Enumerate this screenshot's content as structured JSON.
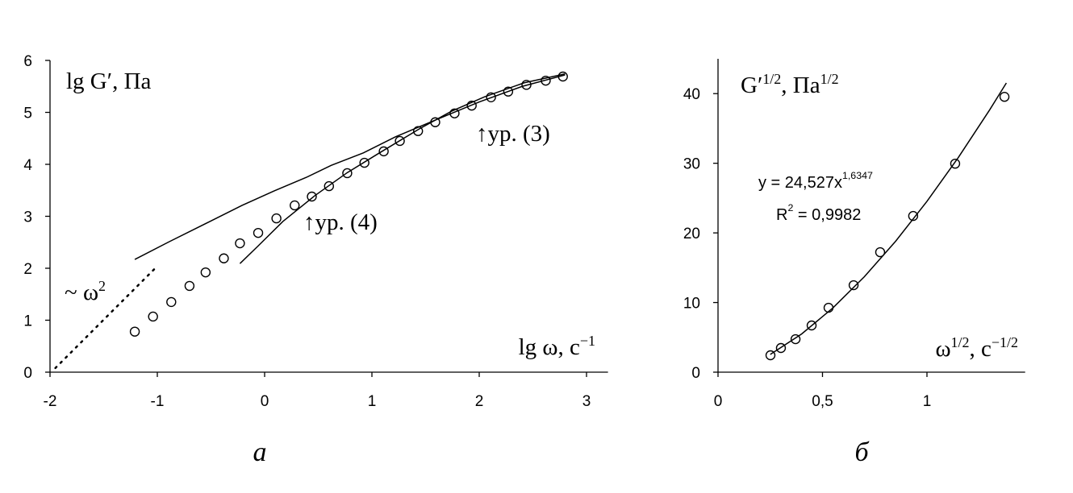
{
  "chart_data": [
    {
      "type": "scatter",
      "xlim": [
        -2,
        3.2
      ],
      "ylim": [
        0,
        6
      ],
      "xticks": [
        -2,
        -1,
        0,
        1,
        2,
        3
      ],
      "yticks": [
        0,
        1,
        2,
        3,
        4,
        5,
        6
      ],
      "ylabel": [
        {
          "text": "lg G′, Па"
        }
      ],
      "xlabel": [
        {
          "text": "lg ω, с"
        },
        {
          "sup": "−1"
        }
      ],
      "annotations": [
        [
          {
            "text": "~ ω"
          },
          {
            "sup": "2"
          }
        ],
        [
          {
            "text": "↑ур. (4)"
          }
        ],
        [
          {
            "text": "↑ур. (3)"
          }
        ]
      ],
      "caption": "а",
      "series": [
        {
          "marker": "circle",
          "color": "#000000",
          "x": [
            -1.21,
            -1.04,
            -0.87,
            -0.7,
            -0.55,
            -0.38,
            -0.23,
            -0.06,
            0.11,
            0.28,
            0.44,
            0.6,
            0.77,
            0.93,
            1.11,
            1.26,
            1.43,
            1.59,
            1.77,
            1.93,
            2.11,
            2.27,
            2.44,
            2.62,
            2.78
          ],
          "values": [
            0.78,
            1.07,
            1.35,
            1.66,
            1.92,
            2.19,
            2.48,
            2.68,
            2.96,
            3.21,
            3.38,
            3.58,
            3.83,
            4.03,
            4.25,
            4.45,
            4.64,
            4.81,
            4.98,
            5.13,
            5.29,
            5.4,
            5.53,
            5.61,
            5.69
          ]
        },
        {
          "line": "solid",
          "color": "#000000",
          "x": [
            -1.21,
            -0.89,
            -0.51,
            -0.21,
            0.09,
            0.39,
            0.62,
            0.92,
            1.22,
            1.6,
            2.0,
            2.4,
            2.8
          ],
          "values": [
            2.17,
            2.51,
            2.9,
            3.21,
            3.49,
            3.75,
            3.98,
            4.22,
            4.53,
            4.86,
            5.2,
            5.5,
            5.72
          ]
        },
        {
          "line": "solid",
          "color": "#000000",
          "x": [
            -0.23,
            -0.06,
            0.17,
            0.47,
            0.77,
            1.07,
            1.44,
            1.74,
            2.05,
            2.42,
            2.8
          ],
          "values": [
            2.09,
            2.43,
            2.9,
            3.4,
            3.84,
            4.22,
            4.68,
            5.02,
            5.3,
            5.57,
            5.74
          ]
        },
        {
          "line": "dotted",
          "color": "#000000",
          "x": [
            -1.95,
            -1.02
          ],
          "values": [
            0.08,
            2.0
          ]
        }
      ]
    },
    {
      "type": "scatter",
      "xlim": [
        0,
        1.47
      ],
      "ylim": [
        0,
        45
      ],
      "xticks": [
        0,
        {
          "value": 0.5,
          "label": "0,5"
        },
        1
      ],
      "yticks": [
        0,
        10,
        20,
        30,
        40
      ],
      "ylabel": [
        {
          "text": "G′"
        },
        {
          "sup": "1/2"
        },
        {
          "text": ", Па"
        },
        {
          "sup": "1/2"
        }
      ],
      "xlabel": [
        {
          "text": "ω"
        },
        {
          "sup": "1/2"
        },
        {
          "text": ", с"
        },
        {
          "sup": "−1/2"
        }
      ],
      "annotations": [
        [
          {
            "text": "y = 24,527x"
          },
          {
            "sup": "1,6347"
          }
        ],
        [
          {
            "text": "R"
          },
          {
            "sup": "2"
          },
          {
            "text": " = 0,9982"
          }
        ]
      ],
      "caption": "б",
      "series": [
        {
          "marker": "circle",
          "color": "#000000",
          "x": [
            0.251,
            0.301,
            0.371,
            0.448,
            0.529,
            0.649,
            0.776,
            0.934,
            1.135,
            1.371
          ],
          "values": [
            2.43,
            3.47,
            4.74,
            6.71,
            9.25,
            12.49,
            17.23,
            22.43,
            29.94,
            39.54
          ]
        },
        {
          "line": "solid",
          "color": "#000000",
          "x": [
            0.25,
            0.4,
            0.55,
            0.7,
            0.85,
            1.0,
            1.15,
            1.3,
            1.38
          ],
          "values": [
            2.54,
            5.48,
            9.23,
            13.69,
            18.8,
            24.53,
            30.82,
            37.66,
            41.53
          ]
        }
      ]
    }
  ]
}
